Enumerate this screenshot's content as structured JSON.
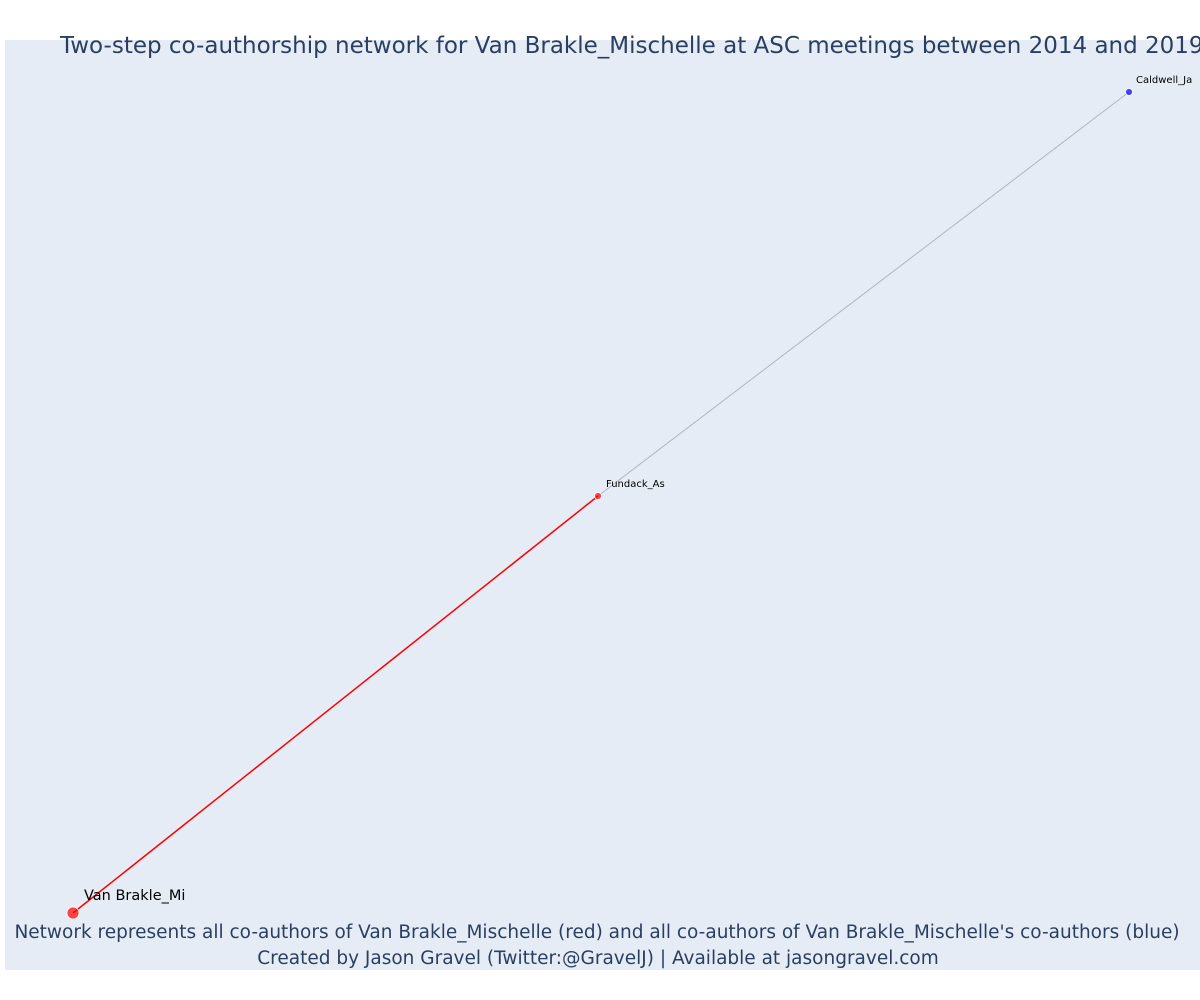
{
  "title": "Two-step co-authorship network for Van Brakle_Mischelle at ASC meetings between 2014 and 2019",
  "caption_line1": "Network represents all co-authors of Van Brakle_Mischelle (red) and all co-authors of Van Brakle_Mischelle's co-authors (blue)",
  "caption_line2": "Created by Jason Gravel (Twitter:@GravelJ) | Available at jasongravel.com",
  "colors": {
    "background": "#e5ecf6",
    "first_degree": "#ff0000",
    "second_degree": "#0000ff",
    "second_degree_edge": "#b0b3c5",
    "text": "#2a3f5f"
  },
  "nodes": [
    {
      "id": "van-brakle",
      "label": "Van Brakle_Mi",
      "group": "focal"
    },
    {
      "id": "fundack",
      "label": "Fundack_As",
      "group": "first_degree"
    },
    {
      "id": "caldwell",
      "label": "Caldwell_Ja",
      "group": "second_degree"
    }
  ],
  "edges": [
    {
      "source": "van-brakle",
      "target": "fundack",
      "group": "first_degree"
    },
    {
      "source": "fundack",
      "target": "caldwell",
      "group": "second_degree"
    }
  ]
}
